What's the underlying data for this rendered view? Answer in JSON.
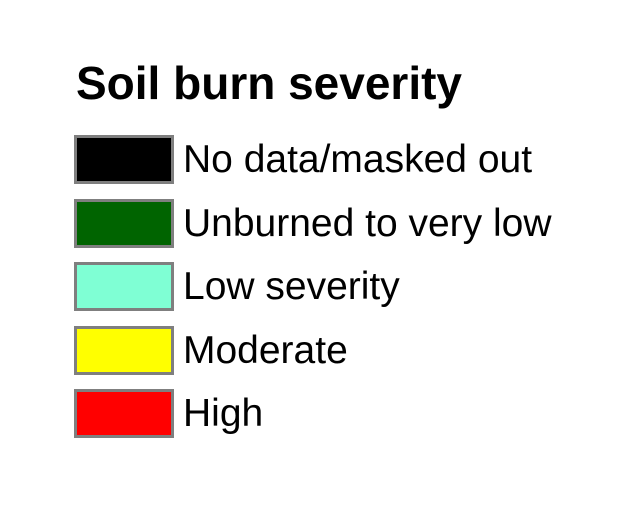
{
  "legend": {
    "title": "Soil burn severity",
    "items": [
      {
        "label": "No data/masked out",
        "color": "#000000"
      },
      {
        "label": "Unburned to very low",
        "color": "#006400"
      },
      {
        "label": "Low severity",
        "color": "#7fffd4"
      },
      {
        "label": "Moderate",
        "color": "#ffff00"
      },
      {
        "label": "High",
        "color": "#ff0000"
      }
    ],
    "swatch_border_color": "#7f7f7f",
    "text_color": "#000000",
    "background_color": "#ffffff"
  },
  "chart_data": {
    "type": "table",
    "title": "Soil burn severity",
    "columns": [
      "class_label",
      "swatch_color"
    ],
    "rows": [
      [
        "No data/masked out",
        "#000000"
      ],
      [
        "Unburned to very low",
        "#006400"
      ],
      [
        "Low severity",
        "#7fffd4"
      ],
      [
        "Moderate",
        "#ffff00"
      ],
      [
        "High",
        "#ff0000"
      ]
    ],
    "legend_position": "standalone-left-aligned",
    "grid": false
  }
}
